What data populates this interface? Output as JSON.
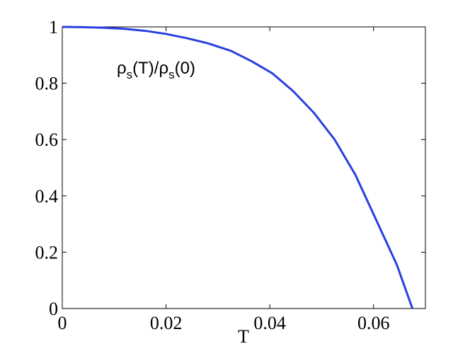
{
  "chart_data": {
    "type": "line",
    "title": "",
    "xlabel": "T",
    "ylabel": "",
    "xlim": [
      0,
      0.07
    ],
    "ylim": [
      0,
      1
    ],
    "xticks": [
      0,
      0.02,
      0.04,
      0.06
    ],
    "xtick_labels": [
      "0",
      "0.02",
      "0.04",
      "0.06"
    ],
    "yticks": [
      0,
      0.2,
      0.4,
      0.6,
      0.8,
      1
    ],
    "ytick_labels": [
      "0",
      "0.2",
      "0.4",
      "0.6",
      "0.8",
      "1"
    ],
    "grid": false,
    "annotation": {
      "rho1": "ρ",
      "sub1": "s",
      "mid": "(T)/",
      "rho2": "ρ",
      "sub2": "s",
      "end": "(0)"
    },
    "series": [
      {
        "color": "#2a3fe0",
        "x": [
          0,
          0.004,
          0.008,
          0.012,
          0.016,
          0.02,
          0.024,
          0.028,
          0.0325,
          0.0365,
          0.0405,
          0.0445,
          0.0485,
          0.0525,
          0.0565,
          0.0605,
          0.0645,
          0.0675
        ],
        "y": [
          1.0,
          0.999,
          0.997,
          0.993,
          0.986,
          0.975,
          0.96,
          0.942,
          0.915,
          0.878,
          0.835,
          0.772,
          0.695,
          0.6,
          0.475,
          0.315,
          0.155,
          0.0
        ]
      }
    ]
  }
}
